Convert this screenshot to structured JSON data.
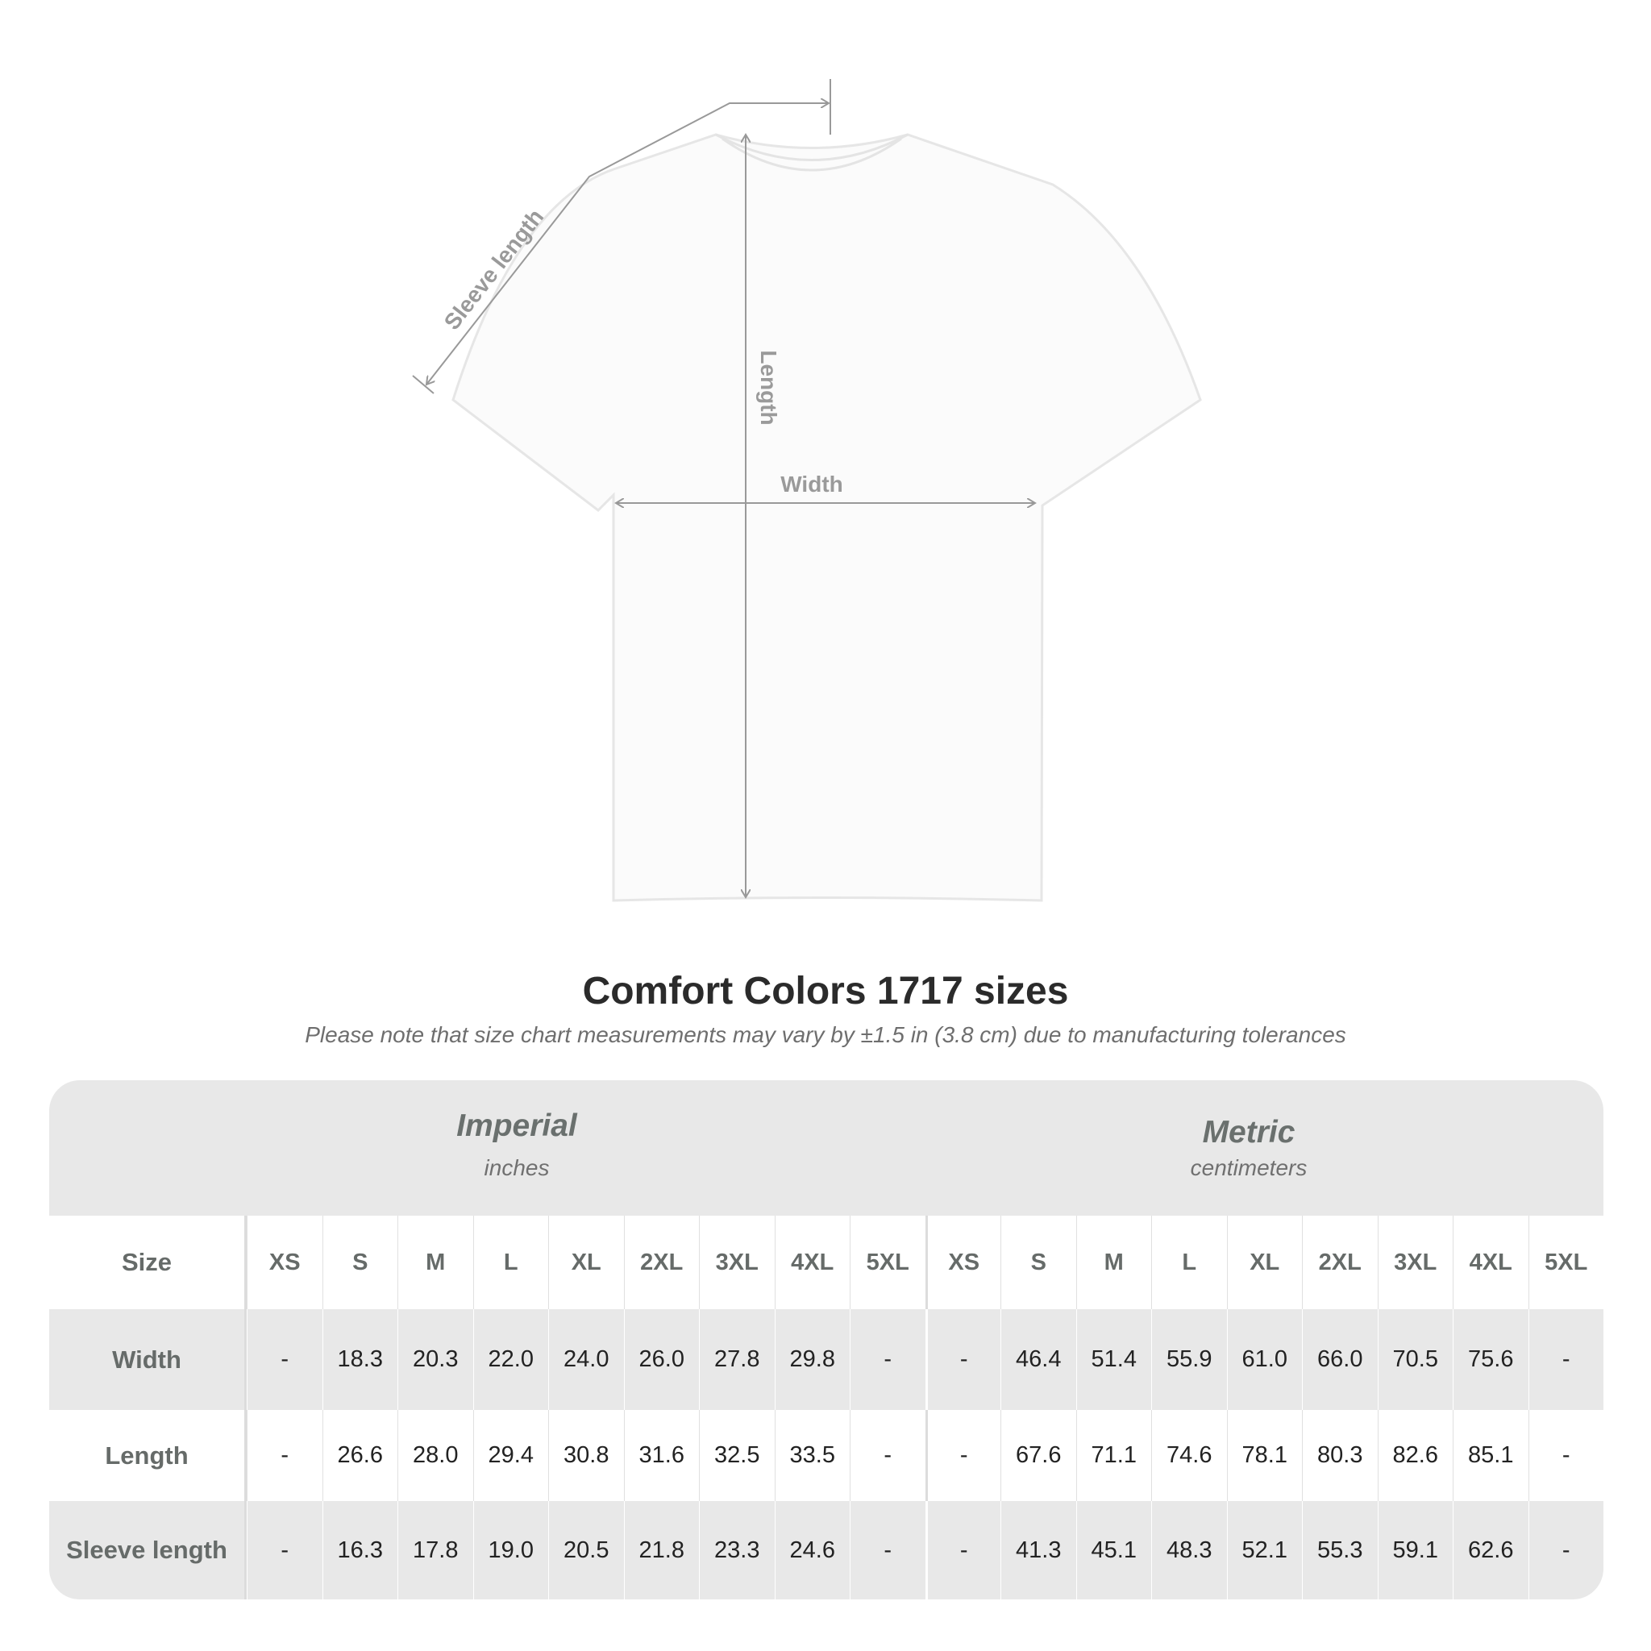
{
  "diagram": {
    "labels": {
      "sleeve": "Sleeve length",
      "length": "Length",
      "width": "Width"
    },
    "line_color": "#999999"
  },
  "title": "Comfort Colors 1717 sizes",
  "note": "Please note that size chart measurements may vary by ±1.5 in (3.8 cm) due to manufacturing tolerances",
  "table": {
    "imperial": {
      "title": "Imperial",
      "unit": "inches"
    },
    "metric": {
      "title": "Metric",
      "unit": "centimeters"
    },
    "size_label": "Size",
    "sizes": [
      "XS",
      "S",
      "M",
      "L",
      "XL",
      "2XL",
      "3XL",
      "4XL",
      "5XL"
    ],
    "rows": [
      {
        "label": "Width",
        "imperial": [
          "-",
          "18.3",
          "20.3",
          "22.0",
          "24.0",
          "26.0",
          "27.8",
          "29.8",
          "-"
        ],
        "metric": [
          "-",
          "46.4",
          "51.4",
          "55.9",
          "61.0",
          "66.0",
          "70.5",
          "75.6",
          "-"
        ]
      },
      {
        "label": "Length",
        "imperial": [
          "-",
          "26.6",
          "28.0",
          "29.4",
          "30.8",
          "31.6",
          "32.5",
          "33.5",
          "-"
        ],
        "metric": [
          "-",
          "67.6",
          "71.1",
          "74.6",
          "78.1",
          "80.3",
          "82.6",
          "85.1",
          "-"
        ]
      },
      {
        "label": "Sleeve length",
        "imperial": [
          "-",
          "16.3",
          "17.8",
          "19.0",
          "20.5",
          "21.8",
          "23.3",
          "24.6",
          "-"
        ],
        "metric": [
          "-",
          "41.3",
          "45.1",
          "48.3",
          "52.1",
          "55.3",
          "59.1",
          "62.6",
          "-"
        ]
      }
    ]
  }
}
